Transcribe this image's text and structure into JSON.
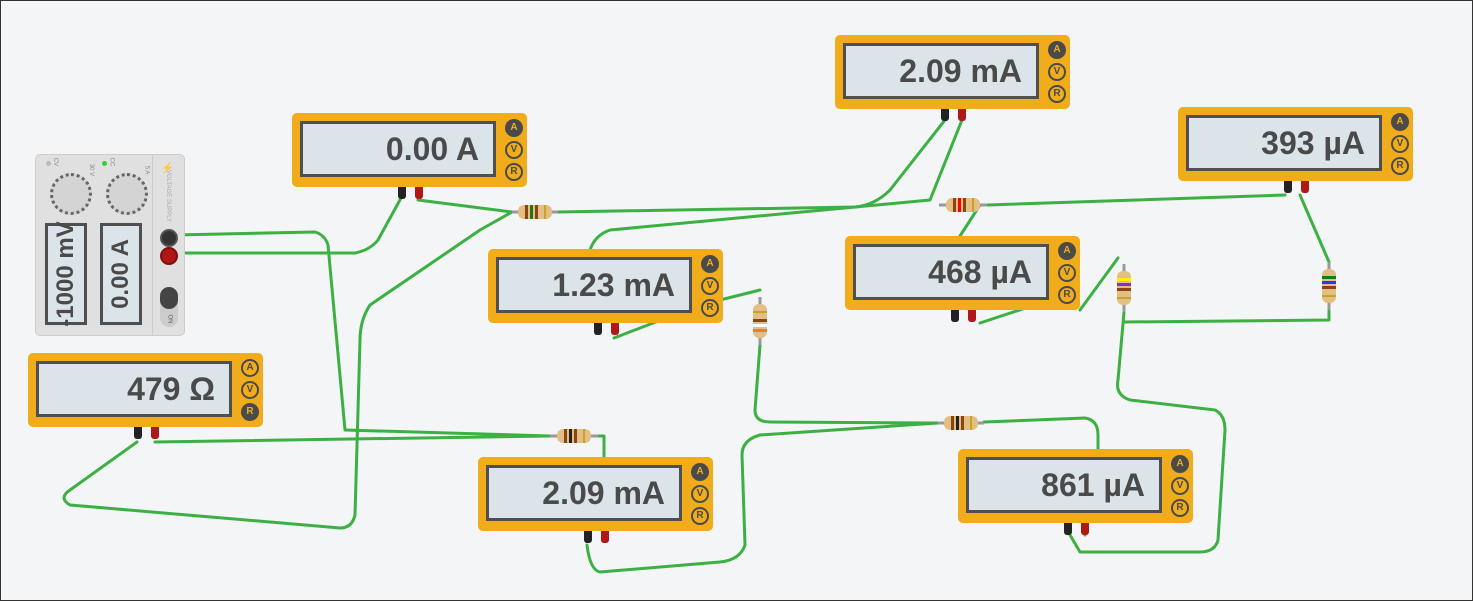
{
  "power_supply": {
    "voltage_display": "-1000 mV",
    "current_display": "0.00 A",
    "label": "VOLTAGE SUPPLY",
    "switch_label": "ON",
    "cv_label": "CV",
    "cc_label": "CC",
    "v_max": "30 V",
    "a_max": "5 A"
  },
  "meters": [
    {
      "reading": "0.00 A",
      "mode": "A"
    },
    {
      "reading": "2.09 mA",
      "mode": "A"
    },
    {
      "reading": "393 µA",
      "mode": "A"
    },
    {
      "reading": "1.23 mA",
      "mode": "A"
    },
    {
      "reading": "468 µA",
      "mode": "A"
    },
    {
      "reading": "479 Ω",
      "mode": "R"
    },
    {
      "reading": "2.09 mA",
      "mode": "A"
    },
    {
      "reading": "861 µA",
      "mode": "A"
    }
  ],
  "mode_labels": {
    "a": "A",
    "v": "V",
    "r": "R"
  },
  "colors": {
    "wire": "#3cb043",
    "meter": "#f0ac1b",
    "screen": "#dbe4e8",
    "resistor": "#e3bf85"
  }
}
